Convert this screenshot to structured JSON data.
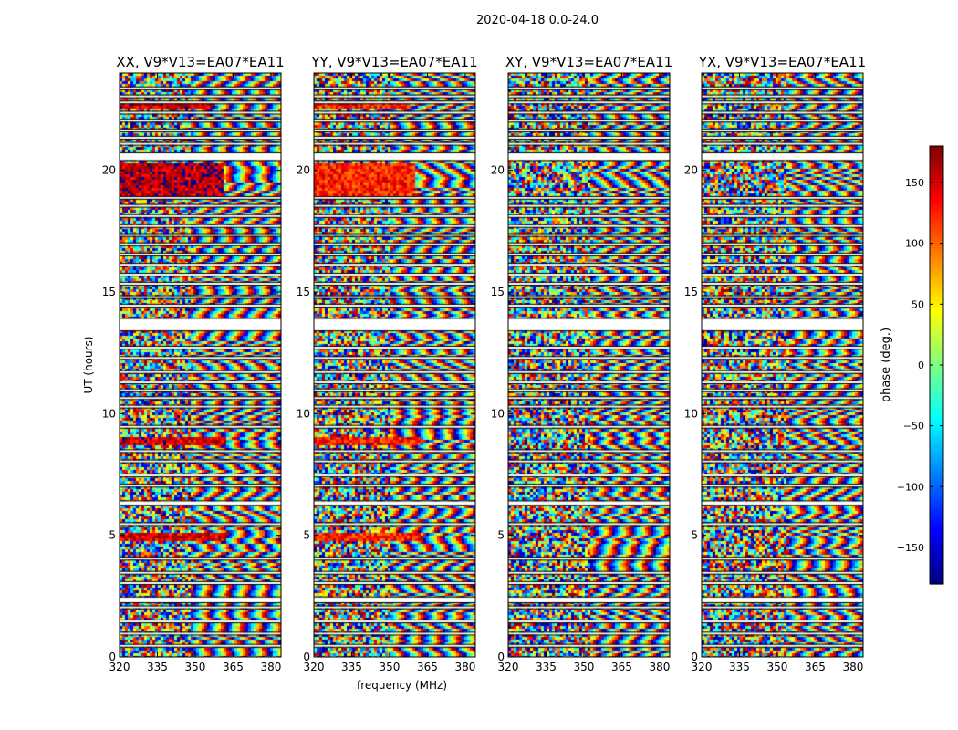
{
  "figure": {
    "suptitle": "2020-04-18 0.0-24.0"
  },
  "chart_data": [
    {
      "type": "heatmap",
      "title": "XX, V9*V13=EA07*EA11",
      "xlabel": "",
      "ylabel": "UT (hours)",
      "xlim": [
        320,
        384
      ],
      "ylim": [
        0,
        24
      ],
      "xticks": [
        "320",
        "335",
        "350",
        "365",
        "380"
      ],
      "yticks": [
        "0",
        "5",
        "10",
        "15",
        "20"
      ],
      "strong_phase_bands": [
        {
          "ut_start": 18.9,
          "ut_end": 20.3,
          "freq_start": 320,
          "freq_end": 361,
          "phase_deg": 160
        },
        {
          "ut_start": 8.75,
          "ut_end": 9.05,
          "freq_start": 320,
          "freq_end": 362,
          "phase_deg": 150
        },
        {
          "ut_start": 4.75,
          "ut_end": 5.05,
          "freq_start": 320,
          "freq_end": 362,
          "phase_deg": 145
        },
        {
          "ut_start": 22.55,
          "ut_end": 22.75,
          "freq_start": 320,
          "freq_end": 358,
          "phase_deg": 150
        }
      ]
    },
    {
      "type": "heatmap",
      "title": "YY, V9*V13=EA07*EA11",
      "xlabel": "frequency (MHz)",
      "ylabel": "",
      "xlim": [
        320,
        384
      ],
      "ylim": [
        0,
        24
      ],
      "xticks": [
        "320",
        "335",
        "350",
        "365",
        "380"
      ],
      "yticks": [
        "0",
        "5",
        "10",
        "15",
        "20"
      ],
      "strong_phase_bands": [
        {
          "ut_start": 18.9,
          "ut_end": 20.3,
          "freq_start": 320,
          "freq_end": 360,
          "phase_deg": 125
        },
        {
          "ut_start": 8.75,
          "ut_end": 9.05,
          "freq_start": 320,
          "freq_end": 362,
          "phase_deg": 130
        },
        {
          "ut_start": 4.75,
          "ut_end": 5.05,
          "freq_start": 320,
          "freq_end": 362,
          "phase_deg": 125
        },
        {
          "ut_start": 22.55,
          "ut_end": 22.75,
          "freq_start": 320,
          "freq_end": 358,
          "phase_deg": 125
        }
      ]
    },
    {
      "type": "heatmap",
      "title": "XY, V9*V13=EA07*EA11",
      "xlabel": "",
      "ylabel": "",
      "xlim": [
        320,
        384
      ],
      "ylim": [
        0,
        24
      ],
      "xticks": [
        "320",
        "335",
        "350",
        "365",
        "380"
      ],
      "yticks": [
        "0",
        "5",
        "10",
        "15",
        "20"
      ],
      "strong_phase_bands": []
    },
    {
      "type": "heatmap",
      "title": "YX, V9*V13=EA07*EA11",
      "xlabel": "",
      "ylabel": "",
      "xlim": [
        320,
        384
      ],
      "ylim": [
        0,
        24
      ],
      "xticks": [
        "320",
        "335",
        "350",
        "365",
        "380"
      ],
      "yticks": [
        "0",
        "5",
        "10",
        "15",
        "20"
      ],
      "strong_phase_bands": []
    }
  ],
  "colorbar": {
    "label": "phase (deg.)",
    "min": -180,
    "max": 180,
    "ticks": [
      "150",
      "100",
      "50",
      "0",
      "−50",
      "−100",
      "−150"
    ],
    "tick_values": [
      150,
      100,
      50,
      0,
      -50,
      -100,
      -150
    ],
    "colormap": "jet"
  },
  "flagged_ut_gaps": [
    [
      0.42,
      0.5
    ],
    [
      0.92,
      1.0
    ],
    [
      1.42,
      1.5
    ],
    [
      2.0,
      2.08
    ],
    [
      2.25,
      2.45
    ],
    [
      3.0,
      3.08
    ],
    [
      3.42,
      3.5
    ],
    [
      4.0,
      4.08
    ],
    [
      5.42,
      5.5
    ],
    [
      6.25,
      6.4
    ],
    [
      7.0,
      7.08
    ],
    [
      7.42,
      7.5
    ],
    [
      8.0,
      8.08
    ],
    [
      8.42,
      8.5
    ],
    [
      9.42,
      9.5
    ],
    [
      10.25,
      10.33
    ],
    [
      10.6,
      10.68
    ],
    [
      10.92,
      11.0
    ],
    [
      11.25,
      11.33
    ],
    [
      11.67,
      11.75
    ],
    [
      12.25,
      12.33
    ],
    [
      12.67,
      12.75
    ],
    [
      13.42,
      13.9
    ],
    [
      14.4,
      14.48
    ],
    [
      14.75,
      14.83
    ],
    [
      15.3,
      15.38
    ],
    [
      15.67,
      15.75
    ],
    [
      16.08,
      16.16
    ],
    [
      16.5,
      16.58
    ],
    [
      16.92,
      17.0
    ],
    [
      17.3,
      17.38
    ],
    [
      17.67,
      17.75
    ],
    [
      18.08,
      18.16
    ],
    [
      18.5,
      18.58
    ],
    [
      18.83,
      18.9
    ],
    [
      20.42,
      20.7
    ],
    [
      21.05,
      21.13
    ],
    [
      21.3,
      21.38
    ],
    [
      21.6,
      21.68
    ],
    [
      22.0,
      22.08
    ],
    [
      22.33,
      22.41
    ],
    [
      22.75,
      22.83
    ],
    [
      23.0,
      23.08
    ],
    [
      23.33,
      23.41
    ]
  ]
}
